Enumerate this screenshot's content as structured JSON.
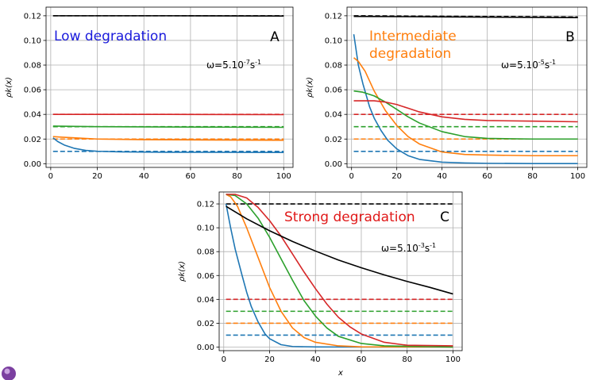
{
  "colors": {
    "blue": "#1f77b4",
    "orange": "#ff7f0e",
    "green": "#2ca02c",
    "red": "#d62728",
    "black": "#000000",
    "grid": "#b0b0b0",
    "title_low": "#1a1adc",
    "title_mid": "#ff7f0e",
    "title_strong": "#e01818"
  },
  "chart_data": [
    {
      "id": "A",
      "type": "line",
      "panel_letter": "A",
      "title_lines": [
        "Low degradation"
      ],
      "title_color": "#1a1adc",
      "omega_base": "ω=5.10",
      "omega_exp": "-7",
      "omega_unit": "s",
      "omega_unit_exp": "-1",
      "xlabel": "",
      "ylabel": "ρk(x)",
      "xlim": [
        -2,
        104
      ],
      "ylim": [
        -0.003,
        0.127
      ],
      "xticks": [
        0,
        20,
        40,
        60,
        80,
        100
      ],
      "yticks": [
        0.0,
        0.02,
        0.04,
        0.06,
        0.08,
        0.1,
        0.12
      ],
      "grid": true,
      "series": [
        {
          "color": "blue",
          "dash": true,
          "x": [
            1,
            100
          ],
          "y": [
            0.01,
            0.01
          ]
        },
        {
          "color": "orange",
          "dash": true,
          "x": [
            1,
            100
          ],
          "y": [
            0.02,
            0.02
          ]
        },
        {
          "color": "green",
          "dash": true,
          "x": [
            1,
            100
          ],
          "y": [
            0.03,
            0.03
          ]
        },
        {
          "color": "red",
          "dash": true,
          "x": [
            1,
            100
          ],
          "y": [
            0.04,
            0.04
          ]
        },
        {
          "color": "black",
          "dash": true,
          "x": [
            1,
            100
          ],
          "y": [
            0.12,
            0.12
          ]
        },
        {
          "color": "blue",
          "dash": false,
          "x": [
            1,
            3,
            6,
            10,
            15,
            20,
            30,
            50,
            100
          ],
          "y": [
            0.021,
            0.018,
            0.015,
            0.0125,
            0.0108,
            0.0101,
            0.0096,
            0.0093,
            0.0091
          ]
        },
        {
          "color": "orange",
          "dash": false,
          "x": [
            1,
            5,
            10,
            20,
            40,
            60,
            100
          ],
          "y": [
            0.022,
            0.0215,
            0.021,
            0.02,
            0.0195,
            0.0193,
            0.019
          ]
        },
        {
          "color": "green",
          "dash": false,
          "x": [
            1,
            20,
            50,
            100
          ],
          "y": [
            0.0305,
            0.03,
            0.0298,
            0.0295
          ]
        },
        {
          "color": "red",
          "dash": false,
          "x": [
            1,
            50,
            100
          ],
          "y": [
            0.04,
            0.04,
            0.0398
          ]
        },
        {
          "color": "black",
          "dash": false,
          "x": [
            1,
            50,
            100
          ],
          "y": [
            0.12,
            0.12,
            0.1198
          ]
        }
      ]
    },
    {
      "id": "B",
      "type": "line",
      "panel_letter": "B",
      "title_lines": [
        "Intermediate",
        "degradation"
      ],
      "title_color": "#ff7f0e",
      "omega_base": "ω=5.10",
      "omega_exp": "-5",
      "omega_unit": "s",
      "omega_unit_exp": "-1",
      "xlabel": "",
      "ylabel": "ρk(x)",
      "xlim": [
        -2,
        104
      ],
      "ylim": [
        -0.003,
        0.127
      ],
      "xticks": [
        0,
        20,
        40,
        60,
        80,
        100
      ],
      "yticks": [
        0.0,
        0.02,
        0.04,
        0.06,
        0.08,
        0.1,
        0.12
      ],
      "grid": true,
      "series": [
        {
          "color": "blue",
          "dash": true,
          "x": [
            1,
            100
          ],
          "y": [
            0.01,
            0.01
          ]
        },
        {
          "color": "orange",
          "dash": true,
          "x": [
            1,
            100
          ],
          "y": [
            0.02,
            0.02
          ]
        },
        {
          "color": "green",
          "dash": true,
          "x": [
            1,
            100
          ],
          "y": [
            0.03,
            0.03
          ]
        },
        {
          "color": "red",
          "dash": true,
          "x": [
            1,
            100
          ],
          "y": [
            0.04,
            0.04
          ]
        },
        {
          "color": "black",
          "dash": true,
          "x": [
            1,
            100
          ],
          "y": [
            0.12,
            0.119
          ]
        },
        {
          "color": "blue",
          "dash": false,
          "x": [
            1,
            3,
            5,
            8,
            10,
            13,
            16,
            20,
            25,
            30,
            40,
            50,
            60,
            80,
            100
          ],
          "y": [
            0.105,
            0.08,
            0.065,
            0.046,
            0.037,
            0.027,
            0.019,
            0.012,
            0.0065,
            0.0035,
            0.0012,
            0.0006,
            0.0003,
            0.0001,
            0.0001
          ]
        },
        {
          "color": "orange",
          "dash": false,
          "x": [
            1,
            3,
            6,
            10,
            15,
            20,
            25,
            30,
            40,
            50,
            60,
            80,
            100
          ],
          "y": [
            0.086,
            0.083,
            0.075,
            0.059,
            0.043,
            0.031,
            0.022,
            0.016,
            0.0095,
            0.0075,
            0.007,
            0.0065,
            0.0065
          ]
        },
        {
          "color": "green",
          "dash": false,
          "x": [
            1,
            5,
            10,
            15,
            20,
            25,
            30,
            40,
            50,
            60,
            80,
            100
          ],
          "y": [
            0.059,
            0.058,
            0.055,
            0.05,
            0.044,
            0.038,
            0.033,
            0.026,
            0.022,
            0.0205,
            0.02,
            0.02
          ]
        },
        {
          "color": "red",
          "dash": false,
          "x": [
            1,
            10,
            15,
            20,
            25,
            30,
            40,
            50,
            60,
            80,
            100
          ],
          "y": [
            0.051,
            0.051,
            0.05,
            0.048,
            0.045,
            0.042,
            0.038,
            0.036,
            0.035,
            0.0345,
            0.034
          ]
        },
        {
          "color": "black",
          "dash": false,
          "x": [
            1,
            50,
            100
          ],
          "y": [
            0.1195,
            0.119,
            0.1185
          ]
        }
      ]
    },
    {
      "id": "C",
      "type": "line",
      "panel_letter": "C",
      "title_lines": [
        "Strong degradation"
      ],
      "title_color": "#e01818",
      "omega_base": "ω=5.10",
      "omega_exp": "-3",
      "omega_unit": "s",
      "omega_unit_exp": "-1",
      "xlabel": "x",
      "ylabel": "ρk(x)",
      "xlim": [
        -2,
        104
      ],
      "ylim": [
        -0.003,
        0.13
      ],
      "xticks": [
        0,
        20,
        40,
        60,
        80,
        100
      ],
      "yticks": [
        0.0,
        0.02,
        0.04,
        0.06,
        0.08,
        0.1,
        0.12
      ],
      "grid": true,
      "series": [
        {
          "color": "blue",
          "dash": true,
          "x": [
            1,
            100
          ],
          "y": [
            0.01,
            0.01
          ]
        },
        {
          "color": "orange",
          "dash": true,
          "x": [
            1,
            100
          ],
          "y": [
            0.02,
            0.02
          ]
        },
        {
          "color": "green",
          "dash": true,
          "x": [
            1,
            100
          ],
          "y": [
            0.03,
            0.03
          ]
        },
        {
          "color": "red",
          "dash": true,
          "x": [
            1,
            100
          ],
          "y": [
            0.04,
            0.04
          ]
        },
        {
          "color": "black",
          "dash": true,
          "x": [
            1,
            100
          ],
          "y": [
            0.12,
            0.12
          ]
        },
        {
          "color": "blue",
          "dash": false,
          "x": [
            1,
            3,
            5,
            8,
            10,
            12,
            15,
            18,
            20,
            25,
            30,
            40,
            60,
            100
          ],
          "y": [
            0.12,
            0.1,
            0.082,
            0.06,
            0.046,
            0.034,
            0.021,
            0.011,
            0.007,
            0.002,
            0.0005,
            0.0001,
            0,
            0
          ]
        },
        {
          "color": "orange",
          "dash": false,
          "x": [
            1,
            3,
            6,
            10,
            15,
            20,
            25,
            30,
            35,
            40,
            50,
            60,
            100
          ],
          "y": [
            0.128,
            0.126,
            0.118,
            0.1,
            0.075,
            0.05,
            0.03,
            0.016,
            0.008,
            0.004,
            0.001,
            0.0002,
            0
          ]
        },
        {
          "color": "green",
          "dash": false,
          "x": [
            1,
            5,
            10,
            15,
            20,
            25,
            30,
            35,
            40,
            45,
            50,
            60,
            70,
            100
          ],
          "y": [
            0.128,
            0.127,
            0.12,
            0.108,
            0.092,
            0.074,
            0.056,
            0.039,
            0.026,
            0.016,
            0.009,
            0.003,
            0.001,
            0
          ]
        },
        {
          "color": "red",
          "dash": false,
          "x": [
            1,
            5,
            10,
            15,
            20,
            25,
            30,
            35,
            40,
            45,
            50,
            55,
            60,
            70,
            80,
            100
          ],
          "y": [
            0.128,
            0.128,
            0.125,
            0.117,
            0.106,
            0.093,
            0.078,
            0.063,
            0.049,
            0.036,
            0.025,
            0.017,
            0.011,
            0.004,
            0.0015,
            0.001
          ]
        },
        {
          "color": "black",
          "dash": false,
          "x": [
            1,
            10,
            20,
            30,
            40,
            50,
            60,
            70,
            80,
            90,
            100
          ],
          "y": [
            0.118,
            0.1075,
            0.0975,
            0.0885,
            0.0805,
            0.073,
            0.0665,
            0.0605,
            0.055,
            0.05,
            0.0445
          ]
        }
      ]
    }
  ]
}
